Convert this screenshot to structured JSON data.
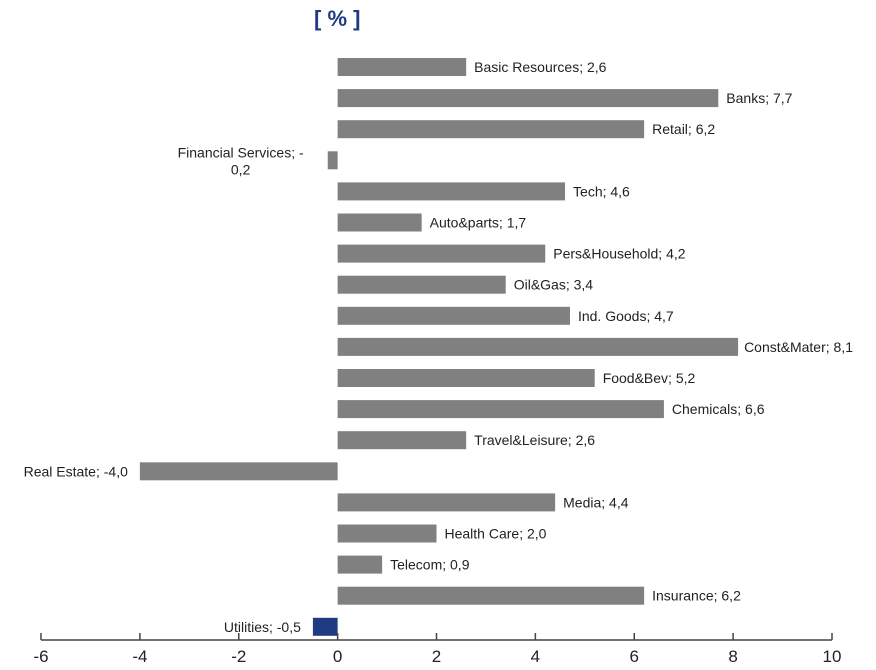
{
  "chart_data": {
    "type": "bar",
    "orientation": "horizontal",
    "unit_label": "[ % ]",
    "title": "",
    "xlabel": "",
    "ylabel": "",
    "xlim": [
      -6,
      10
    ],
    "x_ticks": [
      -6,
      -4,
      -2,
      0,
      2,
      4,
      6,
      8,
      10
    ],
    "grid": false,
    "legend": "none",
    "colors": {
      "default": "#808080",
      "highlight": "#1f3b82",
      "axis": "#444444",
      "text": "#222222"
    },
    "categories": [
      "Basic Resources",
      "Banks",
      "Retail",
      "Financial Services",
      "Tech",
      "Auto&parts",
      "Pers&Household",
      "Oil&Gas",
      "Ind. Goods",
      "Const&Mater",
      "Food&Bev",
      "Chemicals",
      "Travel&Leisure",
      "Real Estate",
      "Media",
      "Health Care",
      "Telecom",
      "Insurance",
      "Utilities"
    ],
    "values": [
      2.6,
      7.7,
      6.2,
      -0.2,
      4.6,
      1.7,
      4.2,
      3.4,
      4.7,
      8.1,
      5.2,
      6.6,
      2.6,
      -4.0,
      4.4,
      2.0,
      0.9,
      6.2,
      -0.5
    ],
    "labels": [
      {
        "text": "Basic Resources; 2,6"
      },
      {
        "text": "Banks; 7,7"
      },
      {
        "text": "Retail; 6,2"
      },
      {
        "lines": [
          "Financial Services; -",
          "0,2"
        ]
      },
      {
        "text": "Tech; 4,6"
      },
      {
        "text": "Auto&parts; 1,7"
      },
      {
        "text": "Pers&Household; 4,2"
      },
      {
        "text": "Oil&Gas; 3,4"
      },
      {
        "text": "Ind. Goods; 4,7"
      },
      {
        "text": "Const&Mater; 8,1"
      },
      {
        "text": "Food&Bev; 5,2"
      },
      {
        "text": "Chemicals; 6,6"
      },
      {
        "text": "Travel&Leisure; 2,6"
      },
      {
        "text": "Real Estate; -4,0"
      },
      {
        "text": "Media; 4,4"
      },
      {
        "text": "Health Care; 2,0"
      },
      {
        "text": "Telecom; 0,9"
      },
      {
        "text": "Insurance; 6,2"
      },
      {
        "text": "Utilities; -0,5"
      }
    ],
    "highlight": [
      "Utilities"
    ]
  }
}
